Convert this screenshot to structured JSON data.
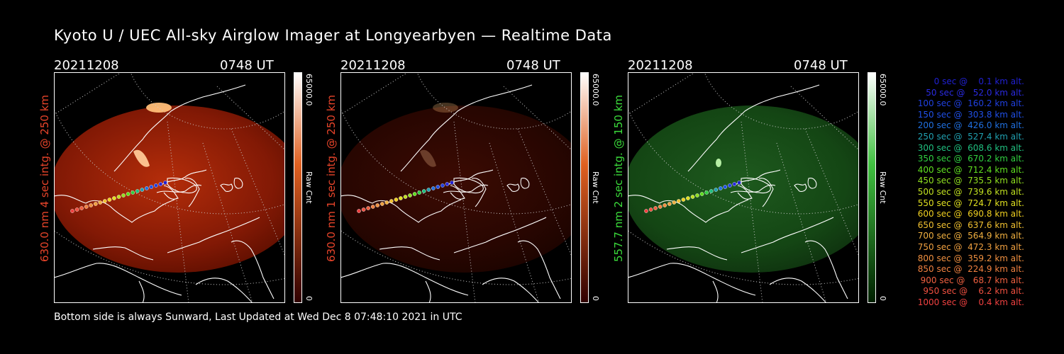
{
  "title": "Kyoto U / UEC All-sky Airglow Imager at Longyearbyen — Realtime Data",
  "footer": "Bottom side is always Sunward, Last Updated at Wed Dec  8 07:48:10 2021 in UTC",
  "panels": [
    {
      "date": "20211208",
      "time": "0748 UT",
      "side_label": "630.0 nm 4 sec intg. @ 250 km",
      "label_color": "#e8442a",
      "colorbar_max": "65000.0",
      "colorbar_min": "0",
      "colorbar_label": "Raw Cnt",
      "theme": "red",
      "brightness": 1.0
    },
    {
      "date": "20211208",
      "time": "0748 UT",
      "side_label": "630.0 nm 1 sec intg. @ 250 km",
      "label_color": "#e8442a",
      "colorbar_max": "65000.0",
      "colorbar_min": "0",
      "colorbar_label": "Raw Cnt",
      "theme": "red",
      "brightness": 0.25
    },
    {
      "date": "20211208",
      "time": "0748 UT",
      "side_label": "557.7 nm 2 sec intg. @ 150 km",
      "label_color": "#3bdc3b",
      "colorbar_max": "65000.0",
      "colorbar_min": "0",
      "colorbar_label": "Raw Cnt",
      "theme": "green",
      "brightness": 0.5
    }
  ],
  "legend": [
    {
      "text": "   0 sec @    0.1 km alt.",
      "color": "#2020d0"
    },
    {
      "text": "  50 sec @   52.0 km alt.",
      "color": "#2a2ae0"
    },
    {
      "text": " 100 sec @  160.2 km alt.",
      "color": "#2040e0"
    },
    {
      "text": " 150 sec @  303.8 km alt.",
      "color": "#2050e8"
    },
    {
      "text": " 200 sec @  426.0 km alt.",
      "color": "#2070e0"
    },
    {
      "text": " 250 sec @  527.4 km alt.",
      "color": "#20a0b0"
    },
    {
      "text": " 300 sec @  608.6 km alt.",
      "color": "#20c080"
    },
    {
      "text": " 350 sec @  670.2 km alt.",
      "color": "#30d040"
    },
    {
      "text": " 400 sec @  712.4 km alt.",
      "color": "#60e020"
    },
    {
      "text": " 450 sec @  735.5 km alt.",
      "color": "#90e020"
    },
    {
      "text": " 500 sec @  739.6 km alt.",
      "color": "#c0e020"
    },
    {
      "text": " 550 sec @  724.7 km alt.",
      "color": "#e0e020"
    },
    {
      "text": " 600 sec @  690.8 km alt.",
      "color": "#f0d020"
    },
    {
      "text": " 650 sec @  637.6 km alt.",
      "color": "#f0c030"
    },
    {
      "text": " 700 sec @  564.9 km alt.",
      "color": "#f0b040"
    },
    {
      "text": " 750 sec @  472.3 km alt.",
      "color": "#f0a040"
    },
    {
      "text": " 800 sec @  359.2 km alt.",
      "color": "#f09040"
    },
    {
      "text": " 850 sec @  224.9 km alt.",
      "color": "#f08040"
    },
    {
      "text": " 900 sec @   68.7 km alt.",
      "color": "#f06040"
    },
    {
      "text": " 950 sec @    6.2 km alt.",
      "color": "#f05040"
    },
    {
      "text": "1000 sec @    0.4 km alt.",
      "color": "#f04040"
    }
  ]
}
